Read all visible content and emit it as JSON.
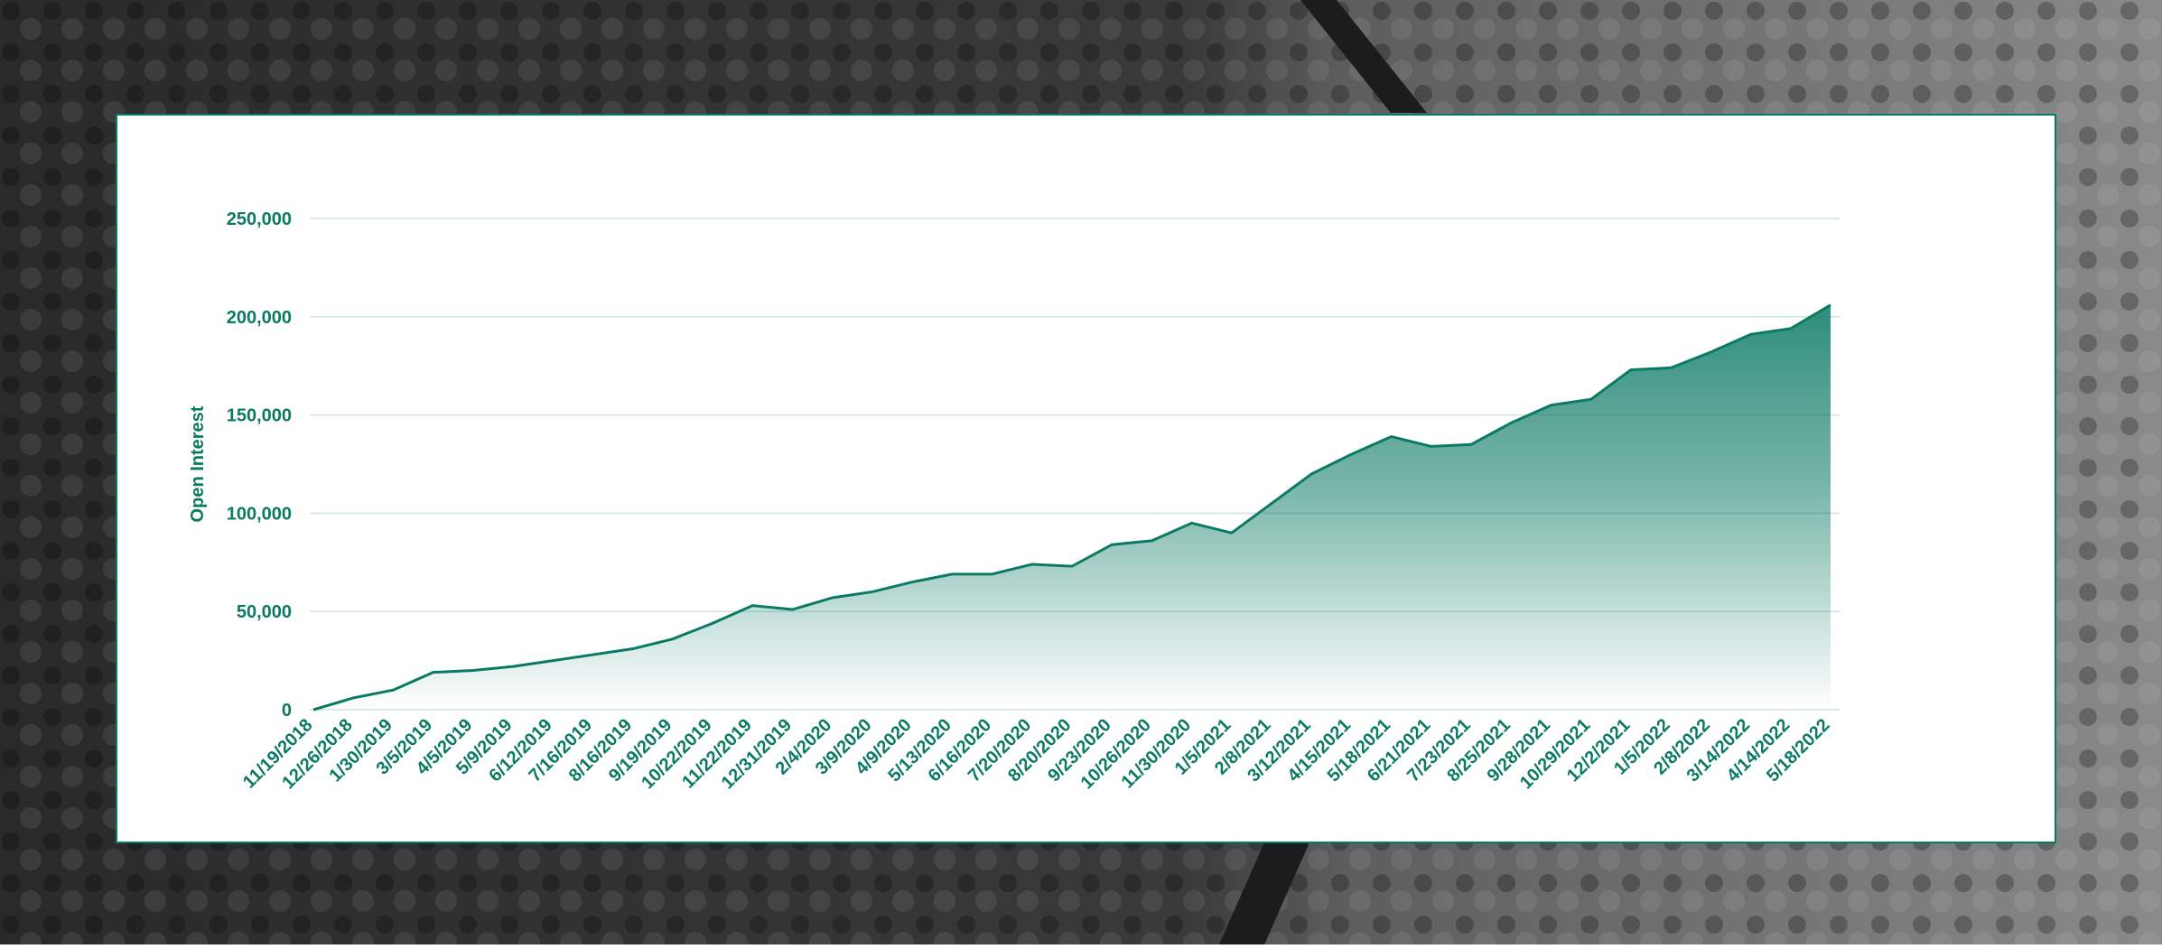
{
  "chart_data": {
    "type": "area",
    "y_label": "Open Interest",
    "categories": [
      "11/19/2018",
      "12/26/2018",
      "1/30/2019",
      "3/5/2019",
      "4/5/2019",
      "5/9/2019",
      "6/12/2019",
      "7/16/2019",
      "8/16/2019",
      "9/19/2019",
      "10/22/2019",
      "11/22/2019",
      "12/31/2019",
      "2/4/2020",
      "3/9/2020",
      "4/9/2020",
      "5/13/2020",
      "6/16/2020",
      "7/20/2020",
      "8/20/2020",
      "9/23/2020",
      "10/26/2020",
      "11/30/2020",
      "1/5/2021",
      "2/8/2021",
      "3/12/2021",
      "4/15/2021",
      "5/18/2021",
      "6/21/2021",
      "7/23/2021",
      "8/25/2021",
      "9/28/2021",
      "10/29/2021",
      "12/2/2021",
      "1/5/2022",
      "2/8/2022",
      "3/14/2022",
      "4/14/2022",
      "5/18/2022"
    ],
    "series": [
      {
        "color": "#0b7a64",
        "values": [
          0,
          6000,
          10000,
          19000,
          20000,
          22000,
          25000,
          28000,
          31000,
          36000,
          44000,
          53000,
          51000,
          57000,
          60000,
          65000,
          69000,
          69000,
          74000,
          73000,
          84000,
          86000,
          95000,
          90000,
          105000,
          120000,
          130000,
          139000,
          134000,
          135000,
          146000,
          155000,
          158000,
          173000,
          174000,
          182000,
          191000,
          194000,
          206000
        ]
      }
    ],
    "ylim": [
      0,
      250000
    ],
    "yticks": [
      0,
      {
        "value": 50000,
        "label": "50,000"
      },
      {
        "value": 100000,
        "label": "100,000"
      },
      {
        "value": 150000,
        "label": "150,000"
      },
      {
        "value": 200000,
        "label": "200,000"
      },
      {
        "value": 250000,
        "label": "250,000"
      }
    ],
    "grid": true
  }
}
